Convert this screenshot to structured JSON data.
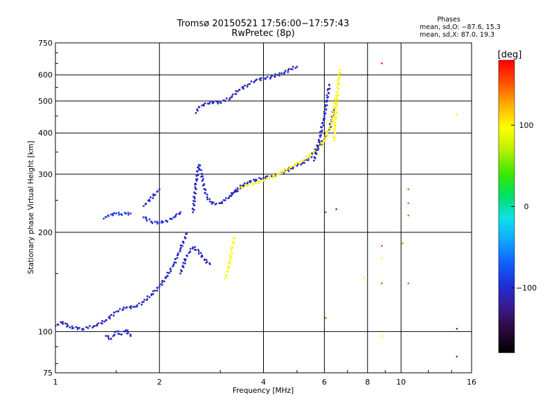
{
  "title_line1": "Tromsø 20150521 17:56:00−17:57:43",
  "title_line2": "RwPretec (8p)",
  "phases_block": {
    "heading": "Phases",
    "line_o": "mean, sd,O: −87.6, 15.3",
    "line_x": "mean, sd,X:  87.0, 19.3"
  },
  "colorbar": {
    "label": "[deg]",
    "ticks": [
      {
        "value": 100,
        "label": "100"
      },
      {
        "value": 0,
        "label": "0"
      },
      {
        "value": -100,
        "label": "−100"
      }
    ],
    "range": [
      -180,
      180
    ],
    "colors": [
      "#000000",
      "#2a0a3a",
      "#3a1a8a",
      "#1f2fd8",
      "#1060ff",
      "#10a8ff",
      "#10e0e8",
      "#00e060",
      "#40e800",
      "#b8f000",
      "#ffff00",
      "#ffb000",
      "#ff5000",
      "#ff0000"
    ]
  },
  "chart_data": {
    "type": "scatter",
    "title": "Tromsø 20150521 17:56:00−17:57:43",
    "subtitle": "RwPretec (8p)",
    "xlabel": "Frequency [MHz]",
    "ylabel": "Stationary phase Virtual Height [km]",
    "x_scale": "log",
    "y_scale": "log",
    "xlim": [
      1,
      16
    ],
    "ylim": [
      75,
      750
    ],
    "x_ticks": [
      {
        "value": 1,
        "label": "1"
      },
      {
        "value": 2,
        "label": "2"
      },
      {
        "value": 4,
        "label": "4"
      },
      {
        "value": 6,
        "label": "6"
      },
      {
        "value": 8,
        "label": "8"
      },
      {
        "value": 10,
        "label": "10"
      },
      {
        "value": 16,
        "label": "16"
      }
    ],
    "y_ticks": [
      {
        "value": 75,
        "label": "75"
      },
      {
        "value": 100,
        "label": "100"
      },
      {
        "value": 200,
        "label": "200"
      },
      {
        "value": 300,
        "label": "300"
      },
      {
        "value": 400,
        "label": "400"
      },
      {
        "value": 500,
        "label": "500"
      },
      {
        "value": 600,
        "label": "600"
      },
      {
        "value": 750,
        "label": "750"
      }
    ],
    "grid": true,
    "color_quantity": "phase [deg]",
    "traces": [
      {
        "x": [
          1.0,
          1.05,
          1.1,
          1.2,
          1.3,
          1.4,
          1.5,
          1.6,
          1.7,
          1.8,
          1.9,
          2.0,
          2.1,
          2.2,
          2.3,
          2.4
        ],
        "y": [
          104,
          107,
          103,
          102,
          104,
          108,
          115,
          118,
          119,
          123,
          130,
          137,
          147,
          160,
          178,
          198
        ],
        "phase": -105
      },
      {
        "x": [
          1.4,
          1.45,
          1.5,
          1.55,
          1.6,
          1.65
        ],
        "y": [
          97,
          95,
          100,
          98,
          101,
          97
        ],
        "phase": -105
      },
      {
        "x": [
          1.38,
          1.42,
          1.5,
          1.55,
          1.6,
          1.65
        ],
        "y": [
          220,
          225,
          228,
          227,
          228,
          228
        ],
        "phase": -90
      },
      {
        "x": [
          1.8,
          1.9,
          2.0,
          2.1,
          2.2,
          2.3
        ],
        "y": [
          222,
          215,
          214,
          216,
          222,
          230
        ],
        "phase": -100
      },
      {
        "x": [
          1.8,
          2.0
        ],
        "y": [
          240,
          270
        ],
        "phase": -100
      },
      {
        "x": [
          2.5,
          2.55,
          2.6,
          2.65,
          2.7,
          2.75,
          2.8,
          2.9,
          3.0,
          3.1,
          3.2,
          3.3,
          3.4,
          3.5
        ],
        "y": [
          230,
          280,
          320,
          300,
          270,
          255,
          248,
          243,
          245,
          250,
          258,
          265,
          272,
          278
        ],
        "phase": -105
      },
      {
        "x": [
          2.3,
          2.4,
          2.5,
          2.6,
          2.7,
          2.8
        ],
        "y": [
          150,
          170,
          180,
          175,
          165,
          160
        ],
        "phase": -105
      },
      {
        "x": [
          3.2,
          3.4,
          3.6,
          3.8,
          4.0,
          4.2,
          4.4,
          4.6,
          4.8,
          5.0,
          5.2,
          5.4,
          5.6,
          5.8,
          6.0,
          6.2,
          6.4
        ],
        "y": [
          258,
          272,
          283,
          289,
          292,
          296,
          300,
          305,
          312,
          318,
          325,
          335,
          348,
          365,
          385,
          410,
          470
        ],
        "phase": -105
      },
      {
        "x": [
          3.4,
          3.6,
          3.8,
          4.0,
          4.4,
          4.8,
          5.2,
          5.6,
          6.0,
          6.3,
          6.5
        ],
        "y": [
          272,
          278,
          282,
          287,
          300,
          315,
          330,
          350,
          380,
          430,
          520
        ],
        "phase": 100
      },
      {
        "x": [
          3.1,
          3.15,
          3.2,
          3.25,
          3.3
        ],
        "y": [
          145,
          152,
          165,
          180,
          192
        ],
        "phase": 95
      },
      {
        "x": [
          2.55,
          2.6,
          2.8,
          3.0,
          3.2,
          3.4,
          3.6,
          3.8,
          4.0,
          4.2,
          4.4,
          4.6,
          4.8,
          5.0
        ],
        "y": [
          460,
          480,
          495,
          495,
          510,
          540,
          560,
          578,
          585,
          590,
          600,
          610,
          625,
          635
        ],
        "phase": -105
      },
      {
        "x": [
          6.4,
          6.45,
          6.5,
          6.55,
          6.6,
          6.65
        ],
        "y": [
          380,
          430,
          480,
          530,
          580,
          620
        ],
        "phase": 100
      },
      {
        "x": [
          5.6,
          5.8,
          6.0,
          6.2
        ],
        "y": [
          330,
          380,
          450,
          560
        ],
        "phase": -105
      }
    ],
    "isolated_points": [
      {
        "x": 8.8,
        "y": 650,
        "phase": 170
      },
      {
        "x": 8.8,
        "y": 182,
        "phase": 160
      },
      {
        "x": 8.8,
        "y": 167,
        "phase": 95
      },
      {
        "x": 8.8,
        "y": 140,
        "phase": 150
      },
      {
        "x": 8.8,
        "y": 97,
        "phase": 95
      },
      {
        "x": 10.5,
        "y": 270,
        "phase": 150
      },
      {
        "x": 10.5,
        "y": 245,
        "phase": 150
      },
      {
        "x": 10.5,
        "y": 225,
        "phase": 150
      },
      {
        "x": 10.5,
        "y": 140,
        "phase": 150
      },
      {
        "x": 10.1,
        "y": 185,
        "phase": 140
      },
      {
        "x": 14.5,
        "y": 455,
        "phase": 100
      },
      {
        "x": 14.5,
        "y": 102,
        "phase": -100
      },
      {
        "x": 14.5,
        "y": 84,
        "phase": -100
      },
      {
        "x": 6.05,
        "y": 230,
        "phase": 160
      },
      {
        "x": 6.05,
        "y": 110,
        "phase": 150
      },
      {
        "x": 6.5,
        "y": 235,
        "phase": -100
      },
      {
        "x": 7.8,
        "y": 145,
        "phase": 95
      }
    ]
  }
}
